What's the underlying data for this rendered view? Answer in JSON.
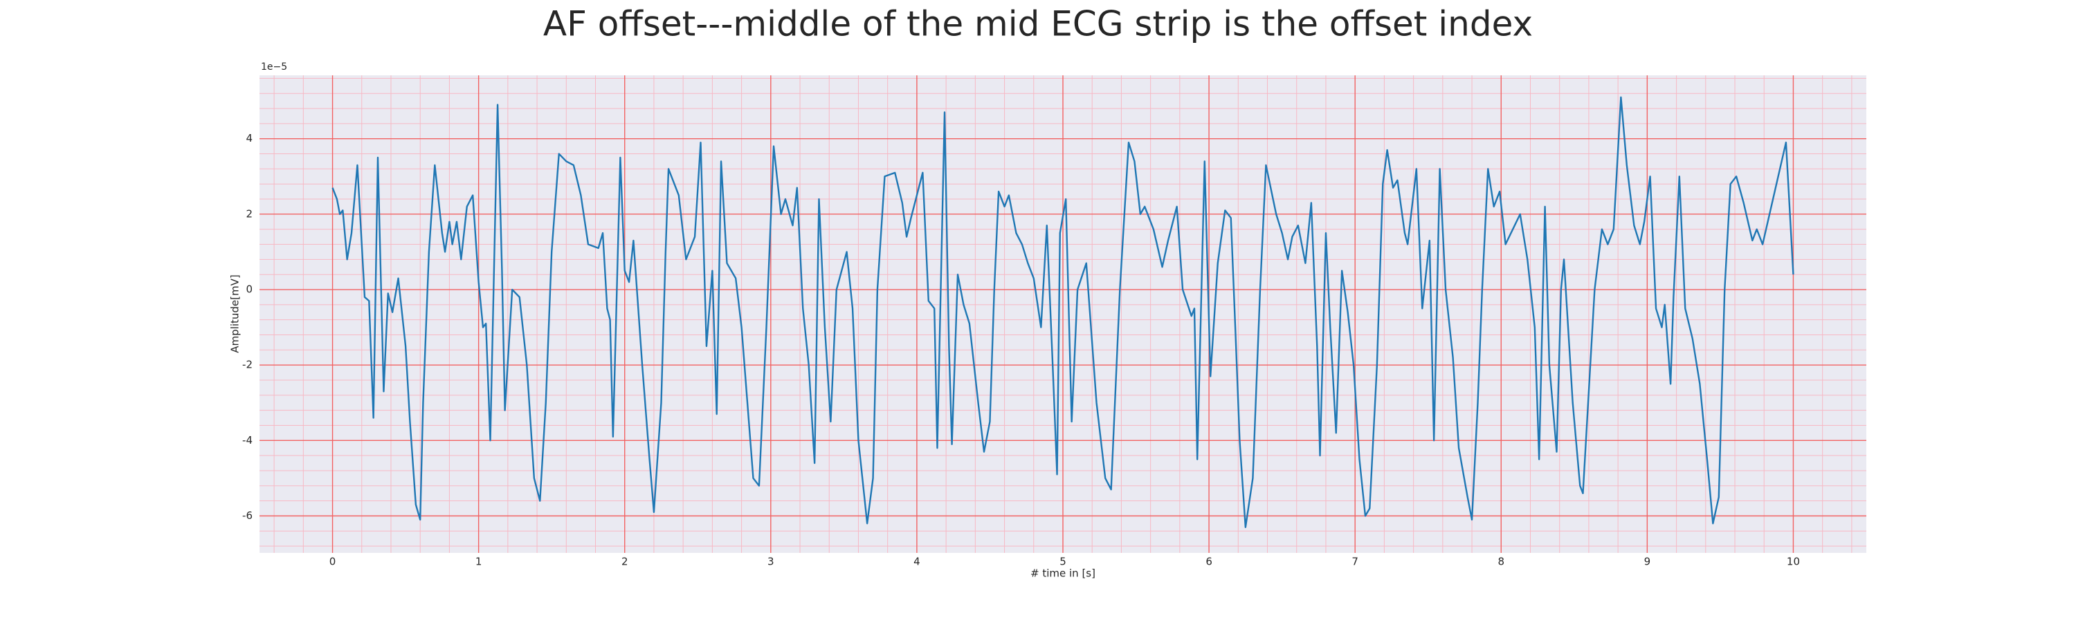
{
  "chart_data": {
    "type": "line",
    "title": "AF offset---middle of the mid ECG strip is the offset index",
    "x_label": "# time in [s]",
    "y_label": "Amplitude[mV]",
    "y_offset_label": "1e−5",
    "xlim": [
      -0.5,
      10.5
    ],
    "ylim": [
      -6.98,
      5.68
    ],
    "xticks": [
      0,
      1,
      2,
      3,
      4,
      5,
      6,
      7,
      8,
      9,
      10
    ],
    "yticks": [
      -6,
      -4,
      -2,
      0,
      2,
      4
    ],
    "grid": true,
    "minor_grid": true,
    "x": [
      0,
      0.03,
      0.05,
      0.07,
      0.1,
      0.13,
      0.17,
      0.22,
      0.25,
      0.28,
      0.31,
      0.35,
      0.38,
      0.41,
      0.45,
      0.5,
      0.53,
      0.57,
      0.6,
      0.62,
      0.66,
      0.7,
      0.75,
      0.77,
      0.8,
      0.82,
      0.85,
      0.88,
      0.92,
      0.96,
      1.0,
      1.03,
      1.05,
      1.08,
      1.13,
      1.16,
      1.18,
      1.23,
      1.28,
      1.33,
      1.38,
      1.42,
      1.46,
      1.5,
      1.55,
      1.6,
      1.65,
      1.7,
      1.75,
      1.82,
      1.85,
      1.88,
      1.9,
      1.92,
      1.97,
      2.0,
      2.03,
      2.06,
      2.12,
      2.17,
      2.2,
      2.25,
      2.28,
      2.3,
      2.37,
      2.42,
      2.48,
      2.52,
      2.56,
      2.6,
      2.63,
      2.66,
      2.7,
      2.76,
      2.8,
      2.84,
      2.88,
      2.92,
      2.97,
      3.02,
      3.07,
      3.1,
      3.15,
      3.18,
      3.22,
      3.26,
      3.3,
      3.33,
      3.37,
      3.41,
      3.45,
      3.52,
      3.56,
      3.6,
      3.66,
      3.7,
      3.73,
      3.78,
      3.85,
      3.9,
      3.93,
      3.96,
      4.04,
      4.08,
      4.12,
      4.14,
      4.19,
      4.22,
      4.24,
      4.28,
      4.32,
      4.36,
      4.42,
      4.46,
      4.5,
      4.53,
      4.56,
      4.6,
      4.63,
      4.68,
      4.72,
      4.76,
      4.8,
      4.85,
      4.89,
      4.93,
      4.96,
      4.98,
      5.02,
      5.06,
      5.1,
      5.16,
      5.23,
      5.29,
      5.33,
      5.39,
      5.45,
      5.49,
      5.53,
      5.56,
      5.62,
      5.68,
      5.72,
      5.78,
      5.82,
      5.88,
      5.9,
      5.92,
      5.97,
      6.01,
      6.06,
      6.11,
      6.15,
      6.18,
      6.21,
      6.25,
      6.3,
      6.35,
      6.39,
      6.46,
      6.5,
      6.54,
      6.57,
      6.61,
      6.66,
      6.7,
      6.74,
      6.76,
      6.8,
      6.83,
      6.87,
      6.91,
      6.95,
      6.99,
      7.03,
      7.07,
      7.1,
      7.15,
      7.19,
      7.22,
      7.26,
      7.29,
      7.34,
      7.36,
      7.42,
      7.46,
      7.51,
      7.54,
      7.58,
      7.62,
      7.67,
      7.71,
      7.77,
      7.8,
      7.84,
      7.87,
      7.91,
      7.95,
      7.99,
      8.03,
      8.08,
      8.13,
      8.18,
      8.23,
      8.26,
      8.3,
      8.33,
      8.38,
      8.41,
      8.43,
      8.49,
      8.54,
      8.56,
      8.64,
      8.69,
      8.73,
      8.77,
      8.82,
      8.86,
      8.91,
      8.95,
      8.98,
      9.02,
      9.06,
      9.1,
      9.12,
      9.16,
      9.18,
      9.22,
      9.26,
      9.31,
      9.36,
      9.41,
      9.45,
      9.49,
      9.53,
      9.57,
      9.61,
      9.66,
      9.72,
      9.75,
      9.79,
      9.95,
      10.0
    ],
    "series": [
      {
        "color": "#1f77b4",
        "values": [
          2.7,
          2.4,
          2.0,
          2.1,
          0.8,
          1.5,
          3.3,
          -0.2,
          -0.3,
          -3.4,
          3.5,
          -2.7,
          -0.1,
          -0.6,
          0.3,
          -1.5,
          -3.5,
          -5.7,
          -6.1,
          -3,
          1,
          3.3,
          1.5,
          1.0,
          1.8,
          1.2,
          1.8,
          0.8,
          2.2,
          2.5,
          0.2,
          -1,
          -0.9,
          -4,
          4.9,
          0.5,
          -3.2,
          0,
          -0.2,
          -2,
          -5,
          -5.6,
          -3,
          1,
          3.6,
          3.4,
          3.3,
          2.5,
          1.2,
          1.1,
          1.5,
          -0.5,
          -0.8,
          -3.9,
          3.5,
          0.5,
          0.2,
          1.3,
          -2,
          -4.5,
          -5.9,
          -3,
          1,
          3.2,
          2.5,
          0.8,
          1.4,
          3.9,
          -1.5,
          0.5,
          -3.3,
          3.4,
          0.7,
          0.3,
          -1,
          -3,
          -5,
          -5.2,
          -1,
          3.8,
          2,
          2.4,
          1.7,
          2.7,
          -0.5,
          -2,
          -4.6,
          2.4,
          -1,
          -3.5,
          0,
          1,
          -0.5,
          -4,
          -6.2,
          -5,
          0,
          3,
          3.1,
          2.3,
          1.4,
          1.9,
          3.1,
          -0.3,
          -0.5,
          -4.2,
          4.7,
          -1.5,
          -4.1,
          0.4,
          -0.4,
          -0.9,
          -3,
          -4.3,
          -3.5,
          0,
          2.6,
          2.2,
          2.5,
          1.5,
          1.2,
          0.7,
          0.3,
          -1,
          1.7,
          -2,
          -4.9,
          1.5,
          2.4,
          -3.5,
          0,
          0.7,
          -3,
          -5,
          -5.3,
          0,
          3.9,
          3.4,
          2,
          2.2,
          1.6,
          0.6,
          1.3,
          2.2,
          0,
          -0.7,
          -0.5,
          -4.5,
          3.4,
          -2.3,
          0.7,
          2.1,
          1.9,
          -1,
          -4,
          -6.3,
          -5,
          0,
          3.3,
          2,
          1.5,
          0.8,
          1.4,
          1.7,
          0.7,
          2.3,
          -1.5,
          -4.4,
          1.5,
          -1,
          -3.8,
          0.5,
          -0.6,
          -2,
          -4.5,
          -6,
          -5.8,
          -2,
          2.8,
          3.7,
          2.7,
          2.9,
          1.5,
          1.2,
          3.2,
          -0.5,
          1.3,
          -4,
          3.2,
          0,
          -1.8,
          -4.2,
          -5.5,
          -6.1,
          -3,
          0,
          3.2,
          2.2,
          2.6,
          1.2,
          1.6,
          2.0,
          0.8,
          -1,
          -4.5,
          2.2,
          -2,
          -4.3,
          0,
          0.8,
          -3,
          -5.2,
          -5.4,
          0,
          1.6,
          1.2,
          1.6,
          5.1,
          3.3,
          1.7,
          1.2,
          1.8,
          3,
          -0.5,
          -1,
          -0.4,
          -2.5,
          -0.2,
          3,
          -0.5,
          -1.3,
          -2.5,
          -4.5,
          -6.2,
          -5.5,
          0,
          2.8,
          3.0,
          2.3,
          1.3,
          1.6,
          1.2,
          3.9,
          0.4
        ]
      }
    ]
  }
}
